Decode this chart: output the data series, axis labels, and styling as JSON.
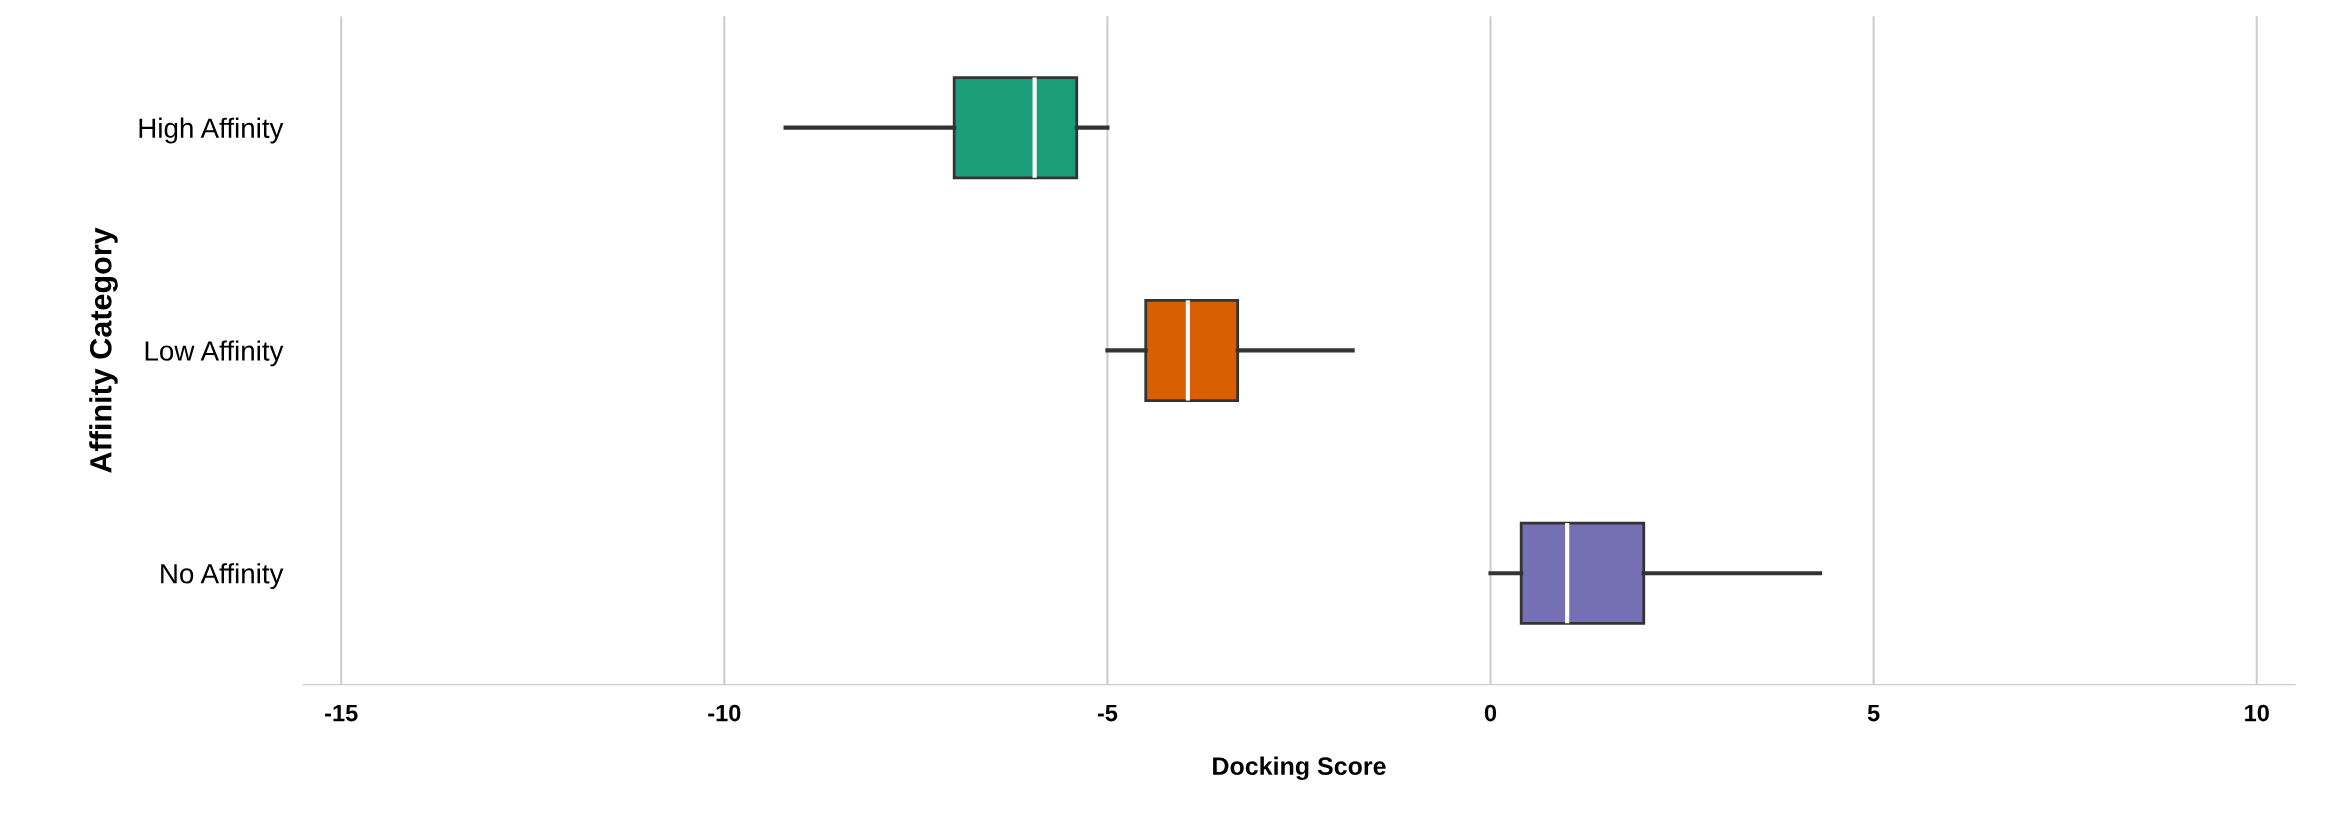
{
  "chart_data": {
    "type": "box",
    "orientation": "horizontal",
    "xlabel": "Docking Score",
    "ylabel": "Affinity Category",
    "categories": [
      "High Affinity",
      "Low Affinity",
      "No Affinity"
    ],
    "colors": [
      "#1b9e77",
      "#d95f02",
      "#7570b3"
    ],
    "boxes": [
      {
        "low": -9.2,
        "q1": -7.0,
        "median": -5.95,
        "q3": -5.4,
        "high": -5.0
      },
      {
        "low": -5.0,
        "q1": -4.5,
        "median": -3.95,
        "q3": -3.3,
        "high": -1.8
      },
      {
        "low": 0.0,
        "q1": 0.4,
        "median": 1.0,
        "q3": 2.0,
        "high": 4.3
      }
    ],
    "xlim": [
      -15.5,
      10.5
    ],
    "xticks": [
      -15,
      -10,
      -5,
      0,
      5,
      10
    ],
    "grid": "x"
  }
}
